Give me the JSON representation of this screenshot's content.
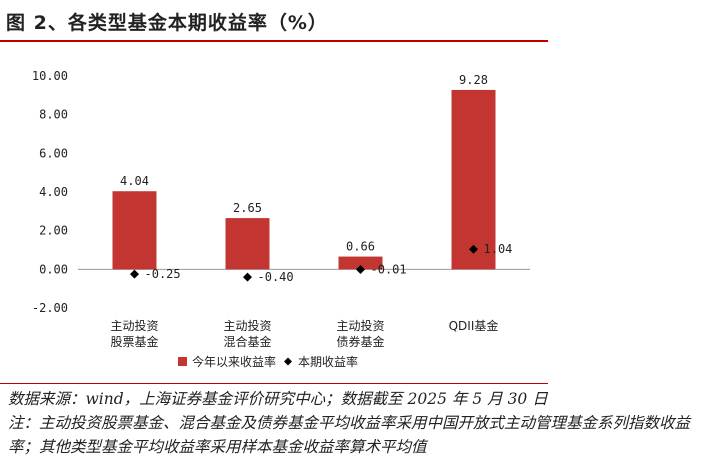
{
  "title": "图 2、各类型基金本期收益率（%）",
  "chart_data": {
    "type": "bar",
    "categories": [
      [
        "主动投资",
        "股票基金"
      ],
      [
        "主动投资",
        "混合基金"
      ],
      [
        "主动投资",
        "债券基金"
      ],
      [
        "QDII基金"
      ]
    ],
    "series": [
      {
        "name": "今年以来收益率",
        "kind": "bar",
        "color": "#c23531",
        "values": [
          4.04,
          2.65,
          0.66,
          9.28
        ],
        "labels": [
          "4.04",
          "2.65",
          "0.66",
          "9.28"
        ]
      },
      {
        "name": "本期收益率",
        "kind": "marker",
        "color": "#000000",
        "values": [
          -0.25,
          -0.4,
          -0.01,
          1.04
        ],
        "labels": [
          "-0.25",
          "-0.40",
          "-0.01",
          "1.04"
        ]
      }
    ],
    "yticks": [
      -2.0,
      0.0,
      2.0,
      4.0,
      6.0,
      8.0,
      10.0
    ],
    "ytick_labels": [
      "-2.00",
      "0.00",
      "2.00",
      "4.00",
      "6.00",
      "8.00",
      "10.00"
    ],
    "ylim": [
      -2,
      10
    ],
    "grid": false,
    "legend_position": "bottom"
  },
  "source": "数据来源：wind，上海证券基金评价研究中心；数据截至 2025 年 5 月 30 日",
  "note": "注：主动投资股票基金、混合基金及债券基金平均收益率采用中国开放式主动管理基金系列指数收益率；其他类型基金平均收益率采用样本基金收益率算术平均值"
}
